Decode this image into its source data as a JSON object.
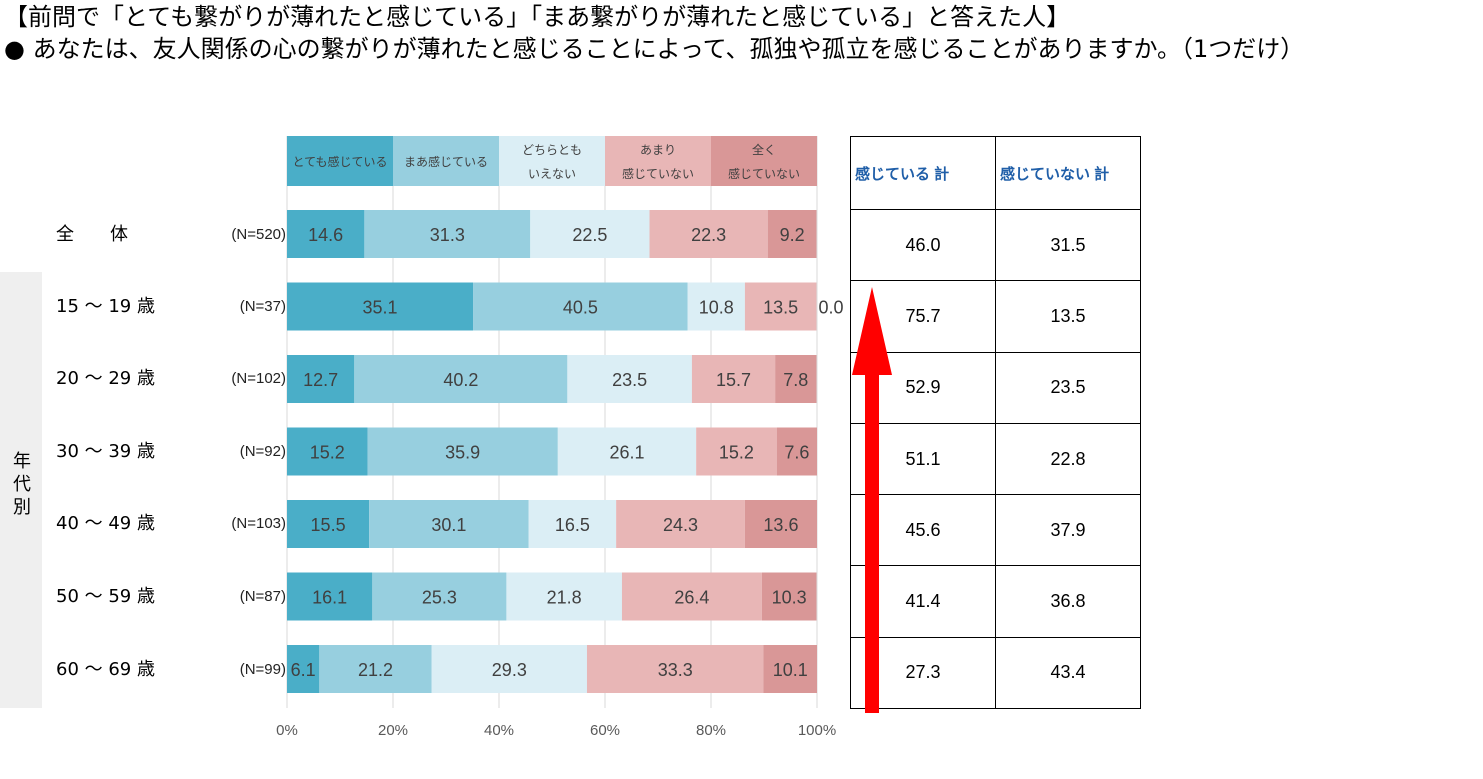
{
  "titles": {
    "line1": "【前問で「とても繋がりが薄れたと感じている」「まあ繋がりが薄れたと感じている」と答えた人】",
    "line2": "● あなたは、友人関係の心の繋がりが薄れたと感じることによって、孤独や孤立を感じることがありますか。（1つだけ）"
  },
  "side_label": [
    "年",
    "代",
    "別"
  ],
  "rows": [
    {
      "label": "全　　体",
      "n": "(N=520)"
    },
    {
      "label": "15 ～ 19 歳",
      "n": "(N=37)"
    },
    {
      "label": "20 ～ 29 歳",
      "n": "(N=102)"
    },
    {
      "label": "30 ～ 39 歳",
      "n": "(N=92)"
    },
    {
      "label": "40 ～ 49 歳",
      "n": "(N=103)"
    },
    {
      "label": "50 ～ 59 歳",
      "n": "(N=87)"
    },
    {
      "label": "60 ～ 69 歳",
      "n": "(N=99)"
    }
  ],
  "table": {
    "headers": [
      "感じている 計",
      "感じていない 計"
    ],
    "rows": [
      [
        "46.0",
        "31.5"
      ],
      [
        "75.7",
        "13.5"
      ],
      [
        "52.9",
        "23.5"
      ],
      [
        "51.1",
        "22.8"
      ],
      [
        "45.6",
        "37.9"
      ],
      [
        "41.4",
        "36.8"
      ],
      [
        "27.3",
        "43.4"
      ]
    ]
  },
  "colors": {
    "arrow": "#ff0000",
    "series": [
      "#4aaec8",
      "#97cfdf",
      "#dbeef5",
      "#e8b6b6",
      "#d99797"
    ]
  },
  "chart_data": {
    "type": "bar",
    "orientation": "horizontal",
    "stacked": true,
    "categories": [
      "全　　体",
      "15 ～ 19 歳",
      "20 ～ 29 歳",
      "30 ～ 39 歳",
      "40 ～ 49 歳",
      "50 ～ 59 歳",
      "60 ～ 69 歳"
    ],
    "series": [
      {
        "name": "とても感じている",
        "values": [
          14.6,
          35.1,
          12.7,
          15.2,
          15.5,
          16.1,
          6.1
        ]
      },
      {
        "name": "まあ感じている",
        "values": [
          31.3,
          40.5,
          40.2,
          35.9,
          30.1,
          25.3,
          21.2
        ]
      },
      {
        "name": "どちらとも いえない",
        "values": [
          22.5,
          10.8,
          23.5,
          26.1,
          16.5,
          21.8,
          29.3
        ]
      },
      {
        "name": "あまり 感じていない",
        "values": [
          22.3,
          13.5,
          15.7,
          15.2,
          24.3,
          26.4,
          33.3
        ]
      },
      {
        "name": "全く 感じていない",
        "values": [
          9.2,
          0.0,
          7.8,
          7.6,
          13.6,
          10.3,
          10.1
        ]
      }
    ],
    "legend_lines": [
      [
        "とても感じている"
      ],
      [
        "まあ感じている"
      ],
      [
        "どちらとも",
        "いえない"
      ],
      [
        "あまり",
        "感じていない"
      ],
      [
        "全く",
        "感じていない"
      ]
    ],
    "x_ticks": [
      "0%",
      "20%",
      "40%",
      "60%",
      "80%",
      "100%"
    ],
    "xlim": [
      0,
      100
    ],
    "grid": true,
    "legend_position": "top"
  }
}
